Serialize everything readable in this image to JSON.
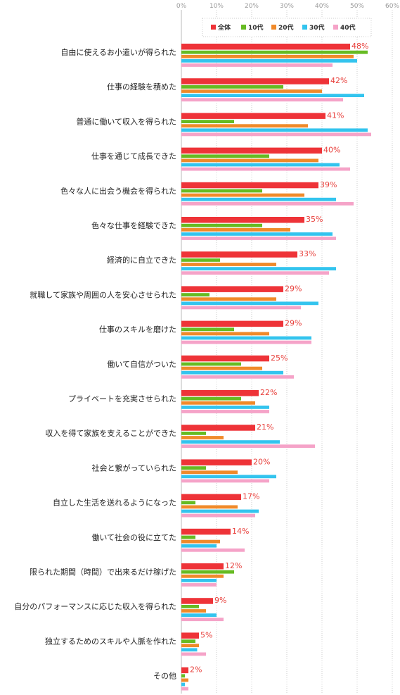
{
  "chart_data": {
    "type": "bar",
    "orientation": "horizontal",
    "xlim": [
      0,
      60
    ],
    "ticks": [
      "0%",
      "10%",
      "20%",
      "30%",
      "40%",
      "50%",
      "60%"
    ],
    "tick_values": [
      0,
      10,
      20,
      30,
      40,
      50,
      60
    ],
    "grid": "vertical dotted",
    "legend_position": "top-right",
    "categories": [
      "自由に使えるお小遣いが得られた",
      "仕事の経験を積めた",
      "普通に働いて収入を得られた",
      "仕事を通じて成長できた",
      "色々な人に出会う機会を得られた",
      "色々な仕事を経験できた",
      "経済的に自立できた",
      "就職して家族や周囲の人を安心させられた",
      "仕事のスキルを磨けた",
      "働いて自信がついた",
      "プライベートを充実させられた",
      "収入を得て家族を支えることができた",
      "社会と繋がっていられた",
      "自立した生活を送れるようになった",
      "働いて社会の役に立てた",
      "限られた期間（時間）で出来るだけ稼げた",
      "自分のパフォーマンスに応じた収入を得られた",
      "独立するためのスキルや人脈を作れた",
      "その他"
    ],
    "series": [
      {
        "name": "全体",
        "color": "#ee3338",
        "values": [
          48,
          42,
          41,
          40,
          39,
          35,
          33,
          29,
          29,
          25,
          22,
          21,
          20,
          17,
          14,
          12,
          9,
          5,
          2
        ]
      },
      {
        "name": "10代",
        "color": "#66bb22",
        "values": [
          53,
          29,
          15,
          25,
          23,
          23,
          11,
          8,
          15,
          17,
          17,
          7,
          7,
          4,
          4,
          15,
          5,
          4,
          1
        ]
      },
      {
        "name": "20代",
        "color": "#f08a2a",
        "values": [
          49,
          40,
          36,
          39,
          35,
          31,
          27,
          27,
          25,
          23,
          21,
          12,
          16,
          16,
          11,
          12,
          7,
          5,
          2
        ]
      },
      {
        "name": "30代",
        "color": "#33c4ee",
        "values": [
          50,
          52,
          53,
          45,
          44,
          43,
          44,
          39,
          37,
          29,
          25,
          28,
          27,
          22,
          10,
          10,
          10,
          4.5,
          1
        ]
      },
      {
        "name": "40代",
        "color": "#f5a3c8",
        "values": [
          43,
          46,
          54,
          48,
          49,
          44,
          42,
          34,
          37,
          32,
          25,
          38,
          25,
          21,
          18,
          10,
          12,
          7,
          2
        ]
      }
    ],
    "value_labels": [
      "48%",
      "42%",
      "41%",
      "40%",
      "39%",
      "35%",
      "33%",
      "29%",
      "29%",
      "25%",
      "22%",
      "21%",
      "20%",
      "17%",
      "14%",
      "12%",
      "9%",
      "5%",
      "2%"
    ]
  }
}
